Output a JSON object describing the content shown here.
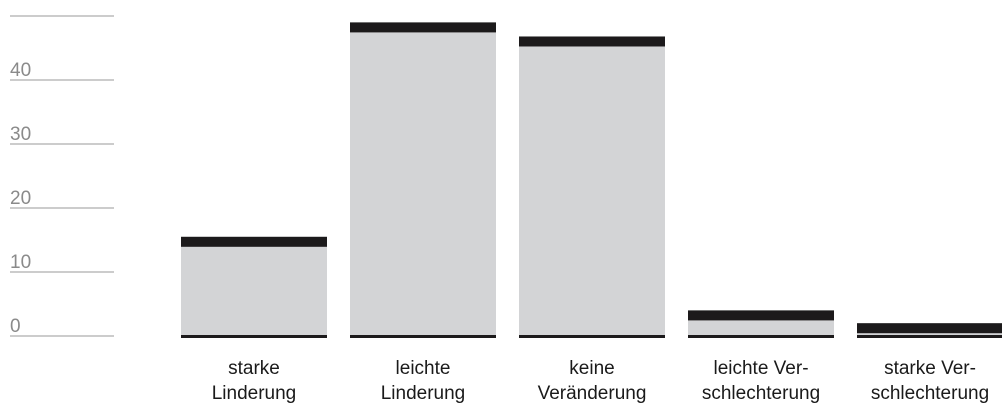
{
  "chart_data": {
    "type": "bar",
    "title": "",
    "xlabel": "",
    "ylabel": "",
    "categories": [
      [
        "starke",
        "Linderung"
      ],
      [
        "leichte",
        "Linderung"
      ],
      [
        "keine",
        "Veränderung"
      ],
      [
        "leichte Ver-",
        "schlechterung"
      ],
      [
        "starke Ver-",
        "schlechterung"
      ]
    ],
    "values": [
      15.5,
      49.0,
      46.8,
      4.0,
      2.0
    ],
    "yticks": [
      {
        "value": 0,
        "label": "0"
      },
      {
        "value": 10,
        "label": "10"
      },
      {
        "value": 20,
        "label": "20"
      },
      {
        "value": 30,
        "label": "30"
      },
      {
        "value": 40,
        "label": "40"
      },
      {
        "value": 50,
        "label": ""
      }
    ],
    "ylim": [
      0,
      50
    ],
    "grid": false,
    "colors": {
      "bar_fill": "#d3d4d6",
      "bar_cap": "#1c1a1b",
      "tick_line": "#9a9a9a",
      "tick_text": "#8a8a8a",
      "category_text": "#1a1a1a"
    }
  }
}
